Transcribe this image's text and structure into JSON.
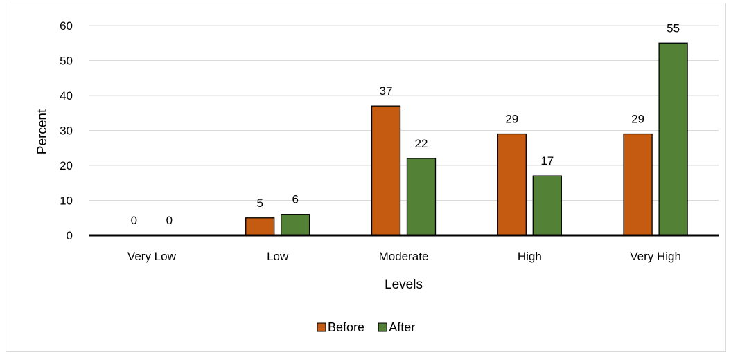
{
  "chart_data": {
    "type": "bar",
    "title": "",
    "xlabel": "Levels",
    "ylabel": "Percent",
    "categories": [
      "Very Low",
      "Low",
      "Moderate",
      "High",
      "Very High"
    ],
    "series": [
      {
        "name": "Before",
        "color": "#c55a11",
        "values": [
          0,
          5,
          37,
          29,
          29
        ]
      },
      {
        "name": "After",
        "color": "#538135",
        "values": [
          0,
          6,
          22,
          17,
          55
        ]
      }
    ],
    "ylim": [
      0,
      60
    ],
    "yticks": [
      0,
      10,
      20,
      30,
      40,
      50,
      60
    ],
    "grid": true,
    "legend": "bottom-center",
    "data_labels": true
  }
}
